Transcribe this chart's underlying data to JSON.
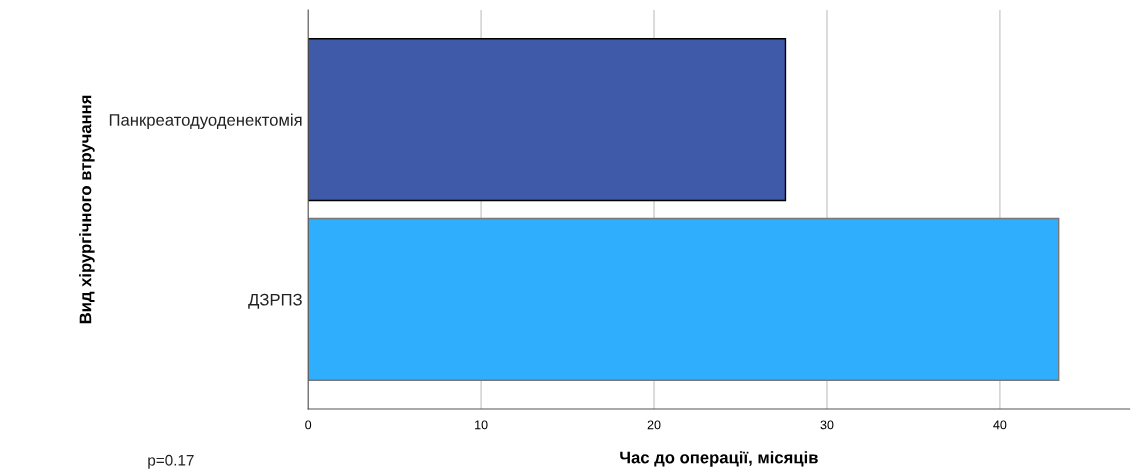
{
  "chart_data": {
    "type": "bar",
    "orientation": "horizontal",
    "xlabel": "Час до операції, місяців",
    "ylabel": "Вид хірургічного втручання",
    "categories": [
      "Панкреатодуоденектомія",
      "ДЗРПЗ"
    ],
    "values": [
      27.6,
      43.4
    ],
    "colors": [
      "#3f5aa8",
      "#2eaefc"
    ],
    "xlim": [
      0,
      47.5
    ],
    "xticks": [
      0,
      10,
      20,
      30,
      40
    ],
    "grid": "x",
    "annotations": [
      "p=0.17"
    ]
  }
}
